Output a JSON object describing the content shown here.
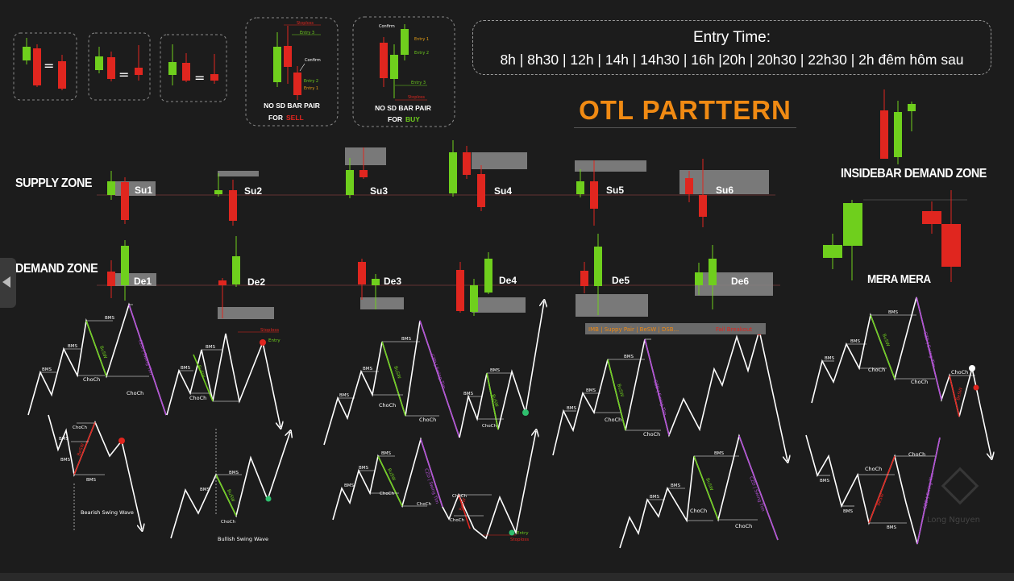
{
  "entry_time": {
    "title": "Entry Time:",
    "times": "8h | 8h30 | 12h | 14h | 14h30 | 16h |20h | 20h30 | 22h30 | 2h đêm hôm sau"
  },
  "otl_title": "OTL PARTTERN",
  "zones": {
    "supply": "SUPPLY ZONE",
    "demand": "DEMAND ZONE",
    "insidebar": "INSIDEBAR DEMAND ZONE",
    "mera": "MERA MERA"
  },
  "supply_labels": [
    "Su1",
    "Su2",
    "Su3",
    "Su4",
    "Su5",
    "Su6"
  ],
  "demand_labels": [
    "De1",
    "De2",
    "De3",
    "De4",
    "De5",
    "De6"
  ],
  "sd_pair_sell": {
    "line1": "NO SD BAR PAIR",
    "for": "FOR",
    "side": "SELL",
    "stoploss": "Stoploss",
    "entry3": "Entry 3",
    "confirm": "Confirm",
    "entry2": "Entry 2",
    "entry1": "Entry 1"
  },
  "sd_pair_buy": {
    "line1": "NO SD BAR PAIR",
    "for": "FOR",
    "side": "BUY",
    "confirm": "Confirm",
    "entry1": "Entry 1",
    "entry2": "Entry 2",
    "entry3": "Entry 3",
    "stoploss": "Stoploss"
  },
  "wave_labels": {
    "bms": "BMS",
    "choch": "ChoCh",
    "besw": "BeSW",
    "busw": "BuSW",
    "czd": "CZD | Swing Tìm",
    "stoploss": "Stoploss",
    "entry": "Entry",
    "bearish": "Bearish Swing Wave",
    "bullish": "Bullish Swing Wave",
    "imb_bar": "IMB | Suppy Pair | BeSW | DSB...",
    "fail_breakout": "Fail Breakout"
  },
  "watermark": "Long Nguyen",
  "colors": {
    "background": "#1c1c1c",
    "bull": "#6fcf1d",
    "bear": "#e0261f",
    "accent": "#f08a13",
    "zone": "#8a8a8a",
    "swing_purple": "#b24fd6"
  }
}
